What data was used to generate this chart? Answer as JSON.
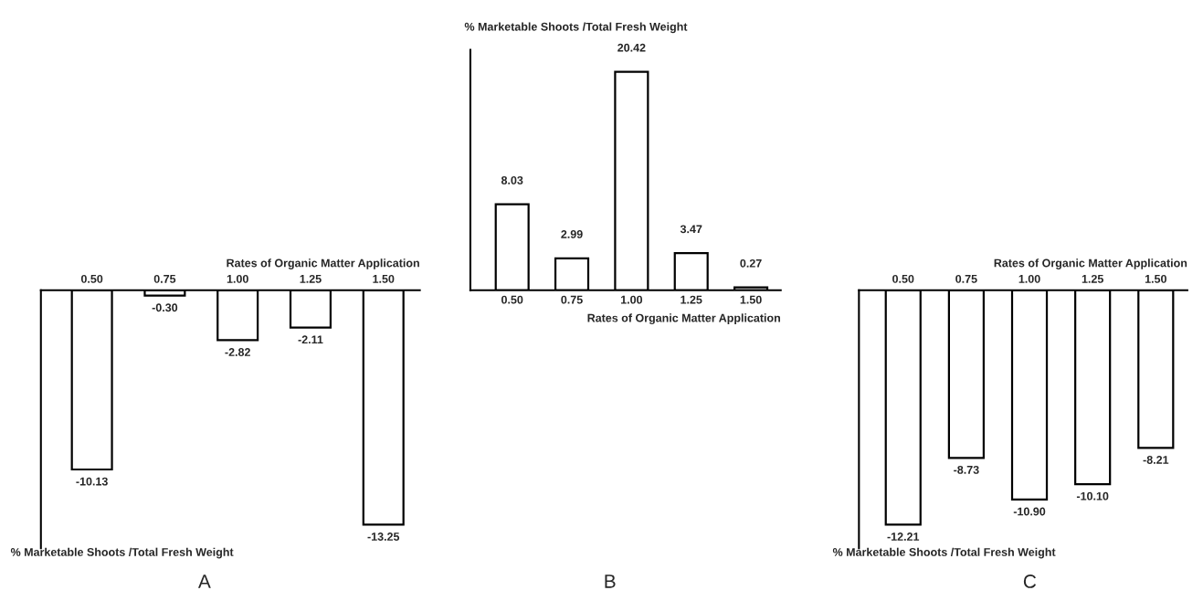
{
  "chart_data": [
    {
      "type": "bar",
      "categories": [
        "0.50",
        "0.75",
        "1.00",
        "1.25",
        "1.50"
      ],
      "values": [
        -10.13,
        -0.3,
        -2.82,
        -2.11,
        -13.25
      ],
      "value_labels": [
        "-10.13",
        "-0.30",
        "-2.82",
        "-2.11",
        "-13.25"
      ],
      "color": "#ffffff",
      "xlabel": "Rates of Organic Matter Application",
      "ylabel": "% Marketable Shoots /Total Fresh Weight",
      "annotations": [
        "A"
      ],
      "grid": false,
      "legend": false
    },
    {
      "type": "bar",
      "categories": [
        "0.50",
        "0.75",
        "1.00",
        "1.25",
        "1.50"
      ],
      "values": [
        8.03,
        2.99,
        20.42,
        3.47,
        0.27
      ],
      "value_labels": [
        "8.03",
        "2.99",
        "20.42",
        "3.47",
        "0.27"
      ],
      "color": "#ffffff",
      "xlabel": "Rates of Organic Matter Application",
      "ylabel": "% Marketable Shoots /Total Fresh Weight",
      "annotations": [
        "B"
      ],
      "grid": false,
      "legend": false
    },
    {
      "type": "bar",
      "categories": [
        "0.50",
        "0.75",
        "1.00",
        "1.25",
        "1.50"
      ],
      "values": [
        -12.21,
        -8.73,
        -10.9,
        -10.1,
        -8.21
      ],
      "value_labels": [
        "-12.21",
        "-8.73",
        "-10.90",
        "-10.10",
        "-8.21"
      ],
      "color": "#ffffff",
      "xlabel": "Rates of Organic Matter Application",
      "ylabel": "% Marketable Shoots /Total Fresh Weight",
      "annotations": [
        "C"
      ],
      "grid": false,
      "legend": false
    }
  ]
}
